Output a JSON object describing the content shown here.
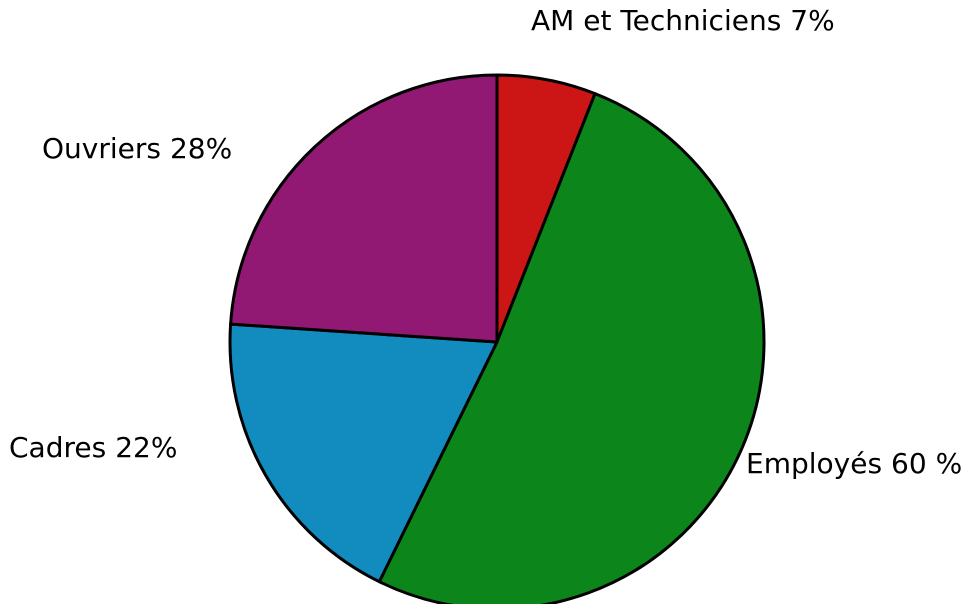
{
  "chart_data": {
    "type": "pie",
    "categories": [
      "AM et Techniciens",
      "Employés",
      "Cadres",
      "Ouvriers"
    ],
    "values": [
      7,
      60,
      22,
      28
    ],
    "value_labels": [
      "7%",
      "60 %",
      "22%",
      "28%"
    ],
    "colors": [
      "#cc1515",
      "#0c861a",
      "#128bbf",
      "#911873"
    ],
    "start_angle": 0,
    "direction": "clockwise"
  }
}
